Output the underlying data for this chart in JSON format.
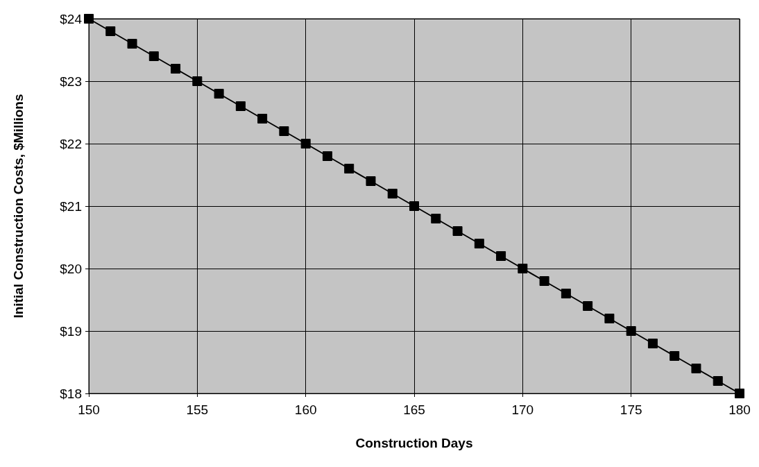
{
  "chart_data": {
    "type": "line",
    "xlabel": "Construction Days",
    "ylabel": "Initial Construction Costs, $Millions",
    "x": [
      150,
      151,
      152,
      153,
      154,
      155,
      156,
      157,
      158,
      159,
      160,
      161,
      162,
      163,
      164,
      165,
      166,
      167,
      168,
      169,
      170,
      171,
      172,
      173,
      174,
      175,
      176,
      177,
      178,
      179,
      180
    ],
    "series": [
      {
        "color": "#000000",
        "values": [
          24,
          23.8,
          23.6,
          23.4,
          23.2,
          23,
          22.8,
          22.6,
          22.4,
          22.2,
          22,
          21.8,
          21.6,
          21.4,
          21.2,
          21,
          20.8,
          20.6,
          20.4,
          20.2,
          20,
          19.8,
          19.6,
          19.4,
          19.2,
          19,
          18.8,
          18.6,
          18.4,
          18.2,
          18
        ]
      }
    ],
    "xlim": [
      150,
      180
    ],
    "xticks": [
      150,
      155,
      160,
      165,
      170,
      175,
      180
    ],
    "ylim": [
      18,
      24
    ],
    "yticks": [
      {
        "value": 18,
        "label": "$18"
      },
      {
        "value": 19,
        "label": "$19"
      },
      {
        "value": 20,
        "label": "$20"
      },
      {
        "value": 21,
        "label": "$21"
      },
      {
        "value": 22,
        "label": "$22"
      },
      {
        "value": 23,
        "label": "$23"
      },
      {
        "value": 24,
        "label": "$24"
      }
    ],
    "grid": true,
    "marker": "square",
    "line_style": "solid"
  }
}
